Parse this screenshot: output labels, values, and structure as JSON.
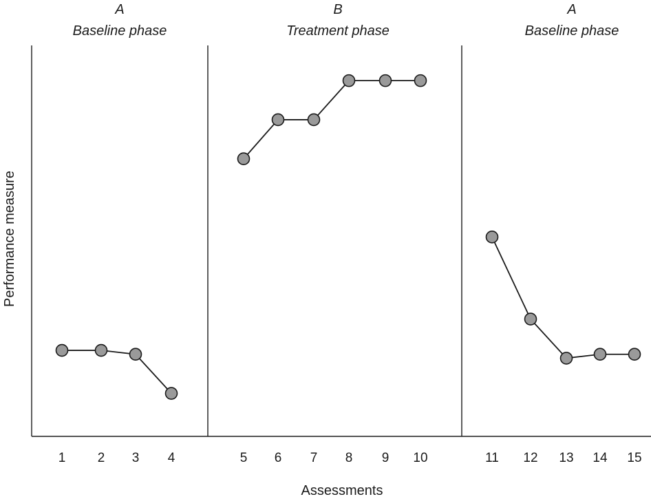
{
  "chart_data": {
    "type": "line",
    "xlabel": "Assessments",
    "ylabel": "Performance measure",
    "ylim": [
      0,
      100
    ],
    "grid": false,
    "phases": [
      {
        "letter": "A",
        "name": "Baseline phase",
        "x": [
          1,
          2,
          3,
          4
        ],
        "y": [
          22,
          22,
          21,
          11
        ]
      },
      {
        "letter": "B",
        "name": "Treatment phase",
        "x": [
          5,
          6,
          7,
          8,
          9,
          10
        ],
        "y": [
          71,
          81,
          81,
          91,
          91,
          91
        ]
      },
      {
        "letter": "A",
        "name": "Baseline phase",
        "x": [
          11,
          12,
          13,
          14,
          15
        ],
        "y": [
          51,
          30,
          20,
          21,
          21
        ]
      }
    ]
  }
}
